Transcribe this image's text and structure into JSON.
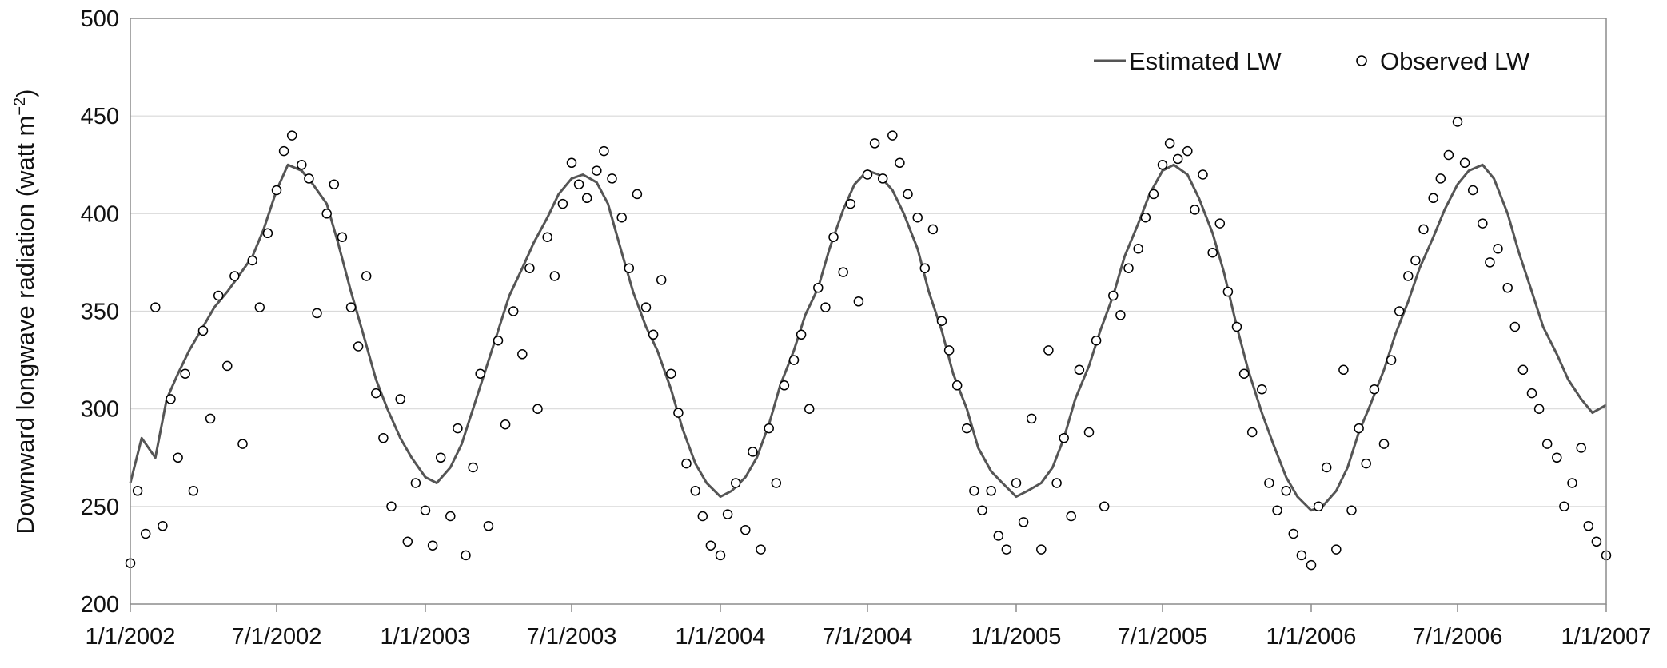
{
  "chart_data": {
    "type": "line",
    "title": "",
    "xlabel": "",
    "ylabel": "Downward longwave radiation (watt m",
    "ylabel_superscript": "−2",
    "ylabel_suffix": ")",
    "ylim": [
      200,
      500
    ],
    "yticks": [
      200,
      250,
      300,
      350,
      400,
      450,
      500
    ],
    "xlim": [
      "2002-01-01",
      "2007-01-01"
    ],
    "xticks": [
      {
        "date": "2002-01-01",
        "label": "1/1/2002"
      },
      {
        "date": "2002-07-01",
        "label": "7/1/2002"
      },
      {
        "date": "2003-01-01",
        "label": "1/1/2003"
      },
      {
        "date": "2003-07-01",
        "label": "7/1/2003"
      },
      {
        "date": "2004-01-01",
        "label": "1/1/2004"
      },
      {
        "date": "2004-07-01",
        "label": "7/1/2004"
      },
      {
        "date": "2005-01-01",
        "label": "1/1/2005"
      },
      {
        "date": "2005-07-01",
        "label": "7/1/2005"
      },
      {
        "date": "2006-01-01",
        "label": "1/1/2006"
      },
      {
        "date": "2006-07-01",
        "label": "7/1/2006"
      },
      {
        "date": "2007-01-01",
        "label": "1/1/2007"
      }
    ],
    "grid": "horizontal",
    "legend_position": "top-right",
    "series": [
      {
        "name": "Estimated LW",
        "style": "line",
        "color": "#555555",
        "x": [
          "2002-01-01",
          "2002-01-15",
          "2002-02-01",
          "2002-02-15",
          "2002-03-01",
          "2002-03-15",
          "2002-04-01",
          "2002-04-15",
          "2002-05-01",
          "2002-05-15",
          "2002-06-01",
          "2002-06-15",
          "2002-07-01",
          "2002-07-15",
          "2002-08-01",
          "2002-08-15",
          "2002-09-01",
          "2002-09-15",
          "2002-10-01",
          "2002-10-15",
          "2002-11-01",
          "2002-11-15",
          "2002-12-01",
          "2002-12-15",
          "2003-01-01",
          "2003-01-15",
          "2003-02-01",
          "2003-02-15",
          "2003-03-01",
          "2003-03-15",
          "2003-04-01",
          "2003-04-15",
          "2003-05-01",
          "2003-05-15",
          "2003-06-01",
          "2003-06-15",
          "2003-07-01",
          "2003-07-15",
          "2003-08-01",
          "2003-08-15",
          "2003-09-01",
          "2003-09-15",
          "2003-10-01",
          "2003-10-15",
          "2003-11-01",
          "2003-11-15",
          "2003-12-01",
          "2003-12-15",
          "2004-01-01",
          "2004-01-15",
          "2004-02-01",
          "2004-02-15",
          "2004-03-01",
          "2004-03-15",
          "2004-04-01",
          "2004-04-15",
          "2004-05-01",
          "2004-05-15",
          "2004-06-01",
          "2004-06-15",
          "2004-07-01",
          "2004-07-15",
          "2004-08-01",
          "2004-08-15",
          "2004-09-01",
          "2004-09-15",
          "2004-10-01",
          "2004-10-15",
          "2004-11-01",
          "2004-11-15",
          "2004-12-01",
          "2004-12-15",
          "2005-01-01",
          "2005-01-15",
          "2005-02-01",
          "2005-02-15",
          "2005-03-01",
          "2005-03-15",
          "2005-04-01",
          "2005-04-15",
          "2005-05-01",
          "2005-05-15",
          "2005-06-01",
          "2005-06-15",
          "2005-07-01",
          "2005-07-15",
          "2005-08-01",
          "2005-08-15",
          "2005-09-01",
          "2005-09-15",
          "2005-10-01",
          "2005-10-15",
          "2005-11-01",
          "2005-11-15",
          "2005-12-01",
          "2005-12-15",
          "2006-01-01",
          "2006-01-15",
          "2006-02-01",
          "2006-02-15",
          "2006-03-01",
          "2006-03-15",
          "2006-04-01",
          "2006-04-15",
          "2006-05-01",
          "2006-05-15",
          "2006-06-01",
          "2006-06-15",
          "2006-07-01",
          "2006-07-15",
          "2006-08-01",
          "2006-08-15",
          "2006-09-01",
          "2006-09-15",
          "2006-10-01",
          "2006-10-15",
          "2006-11-01",
          "2006-11-15",
          "2006-12-01",
          "2006-12-15",
          "2007-01-01"
        ],
        "y": [
          262,
          285,
          275,
          305,
          318,
          330,
          342,
          352,
          360,
          368,
          378,
          392,
          412,
          425,
          422,
          415,
          405,
          385,
          360,
          340,
          315,
          300,
          285,
          275,
          265,
          262,
          270,
          282,
          300,
          318,
          340,
          358,
          372,
          385,
          398,
          410,
          418,
          420,
          416,
          405,
          380,
          360,
          342,
          330,
          310,
          290,
          272,
          262,
          255,
          258,
          265,
          275,
          292,
          312,
          330,
          348,
          362,
          382,
          402,
          415,
          422,
          420,
          412,
          400,
          382,
          360,
          340,
          318,
          300,
          280,
          268,
          262,
          255,
          258,
          262,
          270,
          285,
          305,
          322,
          340,
          358,
          378,
          395,
          410,
          422,
          425,
          420,
          408,
          390,
          370,
          342,
          320,
          298,
          282,
          265,
          255,
          248,
          250,
          258,
          270,
          288,
          302,
          320,
          338,
          355,
          372,
          388,
          402,
          415,
          422,
          425,
          418,
          400,
          380,
          360,
          342,
          328,
          315,
          305,
          298,
          302
        ]
      },
      {
        "name": "Observed LW",
        "style": "markers",
        "marker": "open-circle",
        "x": [
          "2002-01-01",
          "2002-01-10",
          "2002-01-20",
          "2002-02-01",
          "2002-02-10",
          "2002-02-20",
          "2002-03-01",
          "2002-03-10",
          "2002-03-20",
          "2002-04-01",
          "2002-04-10",
          "2002-04-20",
          "2002-05-01",
          "2002-05-10",
          "2002-05-20",
          "2002-06-01",
          "2002-06-10",
          "2002-06-20",
          "2002-07-01",
          "2002-07-10",
          "2002-07-20",
          "2002-08-01",
          "2002-08-10",
          "2002-08-20",
          "2002-09-01",
          "2002-09-10",
          "2002-09-20",
          "2002-10-01",
          "2002-10-10",
          "2002-10-20",
          "2002-11-01",
          "2002-11-10",
          "2002-11-20",
          "2002-12-01",
          "2002-12-10",
          "2002-12-20",
          "2003-01-01",
          "2003-01-10",
          "2003-01-20",
          "2003-02-01",
          "2003-02-10",
          "2003-02-20",
          "2003-03-01",
          "2003-03-10",
          "2003-03-20",
          "2003-04-01",
          "2003-04-10",
          "2003-04-20",
          "2003-05-01",
          "2003-05-10",
          "2003-05-20",
          "2003-06-01",
          "2003-06-10",
          "2003-06-20",
          "2003-07-01",
          "2003-07-10",
          "2003-07-20",
          "2003-08-01",
          "2003-08-10",
          "2003-08-20",
          "2003-09-01",
          "2003-09-10",
          "2003-09-20",
          "2003-10-01",
          "2003-10-10",
          "2003-10-20",
          "2003-11-01",
          "2003-11-10",
          "2003-11-20",
          "2003-12-01",
          "2003-12-10",
          "2003-12-20",
          "2004-01-01",
          "2004-01-10",
          "2004-01-20",
          "2004-02-01",
          "2004-02-10",
          "2004-02-20",
          "2004-03-01",
          "2004-03-10",
          "2004-03-20",
          "2004-04-01",
          "2004-04-10",
          "2004-04-20",
          "2004-05-01",
          "2004-05-10",
          "2004-05-20",
          "2004-06-01",
          "2004-06-10",
          "2004-06-20",
          "2004-07-01",
          "2004-07-10",
          "2004-07-20",
          "2004-08-01",
          "2004-08-10",
          "2004-08-20",
          "2004-09-01",
          "2004-09-10",
          "2004-09-20",
          "2004-10-01",
          "2004-10-10",
          "2004-10-20",
          "2004-11-01",
          "2004-11-10",
          "2004-11-20",
          "2004-12-01",
          "2004-12-10",
          "2004-12-20",
          "2005-01-01",
          "2005-01-10",
          "2005-01-20",
          "2005-02-01",
          "2005-02-10",
          "2005-02-20",
          "2005-03-01",
          "2005-03-10",
          "2005-03-20",
          "2005-04-01",
          "2005-04-10",
          "2005-04-20",
          "2005-05-01",
          "2005-05-10",
          "2005-05-20",
          "2005-06-01",
          "2005-06-10",
          "2005-06-20",
          "2005-07-01",
          "2005-07-10",
          "2005-07-20",
          "2005-08-01",
          "2005-08-10",
          "2005-08-20",
          "2005-09-01",
          "2005-09-10",
          "2005-09-20",
          "2005-10-01",
          "2005-10-10",
          "2005-10-20",
          "2005-11-01",
          "2005-11-10",
          "2005-11-20",
          "2005-12-01",
          "2005-12-10",
          "2005-12-20",
          "2006-01-01",
          "2006-01-10",
          "2006-01-20",
          "2006-02-01",
          "2006-02-10",
          "2006-02-20",
          "2006-03-01",
          "2006-03-10",
          "2006-03-20",
          "2006-04-01",
          "2006-04-10",
          "2006-04-20",
          "2006-05-01",
          "2006-05-10",
          "2006-05-20",
          "2006-06-01",
          "2006-06-10",
          "2006-06-20",
          "2006-07-01",
          "2006-07-10",
          "2006-07-20",
          "2006-08-01",
          "2006-08-10",
          "2006-08-20",
          "2006-09-01",
          "2006-09-10",
          "2006-09-20",
          "2006-10-01",
          "2006-10-10",
          "2006-10-20",
          "2006-11-01",
          "2006-11-10",
          "2006-11-20",
          "2006-12-01",
          "2006-12-10",
          "2006-12-20",
          "2007-01-01"
        ],
        "y": [
          221,
          258,
          236,
          352,
          240,
          305,
          275,
          318,
          258,
          340,
          295,
          358,
          322,
          368,
          282,
          376,
          352,
          390,
          412,
          432,
          440,
          425,
          418,
          349,
          400,
          415,
          388,
          352,
          332,
          368,
          308,
          285,
          250,
          305,
          232,
          262,
          248,
          230,
          275,
          245,
          290,
          225,
          270,
          318,
          240,
          335,
          292,
          350,
          328,
          372,
          300,
          388,
          368,
          405,
          426,
          415,
          408,
          422,
          432,
          418,
          398,
          372,
          410,
          352,
          338,
          366,
          318,
          298,
          272,
          258,
          245,
          230,
          225,
          246,
          262,
          238,
          278,
          228,
          290,
          262,
          312,
          325,
          338,
          300,
          362,
          352,
          388,
          370,
          405,
          355,
          420,
          436,
          418,
          440,
          426,
          410,
          398,
          372,
          392,
          345,
          330,
          312,
          290,
          258,
          248,
          258,
          235,
          228,
          262,
          242,
          295,
          228,
          330,
          262,
          285,
          245,
          320,
          288,
          335,
          250,
          358,
          348,
          372,
          382,
          398,
          410,
          425,
          436,
          428,
          432,
          402,
          420,
          380,
          395,
          360,
          342,
          318,
          288,
          310,
          262,
          248,
          258,
          236,
          225,
          220,
          250,
          270,
          228,
          320,
          248,
          290,
          272,
          310,
          282,
          325,
          350,
          368,
          376,
          392,
          408,
          418,
          430,
          447,
          426,
          412,
          395,
          375,
          382,
          362,
          342,
          320,
          308,
          300,
          282,
          275,
          250,
          262,
          280,
          240,
          232,
          225
        ]
      }
    ]
  }
}
